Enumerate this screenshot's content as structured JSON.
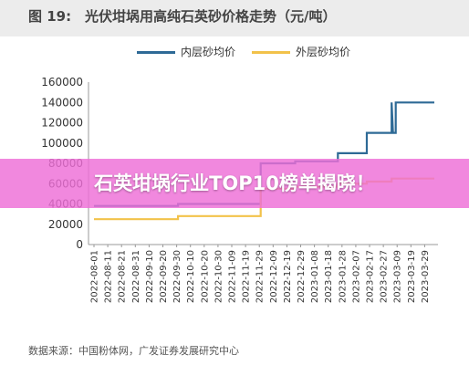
{
  "figure": {
    "label": "图 19:",
    "title": "光伏坩埚用高纯石英砂价格走势（元/吨）",
    "source": "数据来源：中国粉体网，广发证券发展研究中心"
  },
  "overlay": {
    "headline": "石英坩埚行业TOP10榜单揭晓！"
  },
  "chart_data": {
    "type": "line",
    "title": "",
    "xlabel": "",
    "ylabel": "",
    "ylim": [
      0,
      160000
    ],
    "yticks": [
      "0",
      "20000",
      "40000",
      "60000",
      "80000",
      "100000",
      "120000",
      "140000",
      "160000"
    ],
    "x": [
      "2022-08-01",
      "2022-08-11",
      "2022-08-21",
      "2022-08-31",
      "2022-09-10",
      "2022-09-20",
      "2022-09-30",
      "2022-10-10",
      "2022-10-20",
      "2022-10-30",
      "2022-11-09",
      "2022-11-19",
      "2022-11-29",
      "2022-12-09",
      "2022-12-19",
      "2022-12-29",
      "2023-01-08",
      "2023-01-18",
      "2023-01-28",
      "2023-02-07",
      "2023-02-17",
      "2023-02-27",
      "2023-03-09",
      "2023-03-19",
      "2023-03-29"
    ],
    "grid": false,
    "legend_position": "top",
    "series": [
      {
        "name": "内层砂均价",
        "color": "#2e6a96",
        "points": [
          [
            "2022-08-01",
            38000
          ],
          [
            "2022-10-01",
            38000
          ],
          [
            "2022-10-01",
            40000
          ],
          [
            "2022-11-30",
            40000
          ],
          [
            "2022-11-30",
            80000
          ],
          [
            "2022-12-25",
            80000
          ],
          [
            "2022-12-25",
            82000
          ],
          [
            "2023-01-25",
            82000
          ],
          [
            "2023-01-25",
            90000
          ],
          [
            "2023-02-15",
            90000
          ],
          [
            "2023-02-15",
            110000
          ],
          [
            "2023-03-05",
            110000
          ],
          [
            "2023-03-05",
            140000
          ],
          [
            "2023-03-06",
            110000
          ],
          [
            "2023-03-08",
            110000
          ],
          [
            "2023-03-08",
            140000
          ],
          [
            "2023-04-05",
            140000
          ]
        ]
      },
      {
        "name": "外层砂均价",
        "color": "#f2c24a",
        "points": [
          [
            "2022-08-01",
            25000
          ],
          [
            "2022-10-01",
            25000
          ],
          [
            "2022-10-01",
            28000
          ],
          [
            "2022-11-30",
            28000
          ],
          [
            "2022-11-30",
            55000
          ],
          [
            "2022-12-25",
            55000
          ],
          [
            "2022-12-25",
            57000
          ],
          [
            "2023-01-25",
            57000
          ],
          [
            "2023-01-25",
            60000
          ],
          [
            "2023-02-15",
            60000
          ],
          [
            "2023-02-15",
            62000
          ],
          [
            "2023-03-05",
            62000
          ],
          [
            "2023-03-05",
            65000
          ],
          [
            "2023-04-05",
            65000
          ]
        ]
      }
    ]
  }
}
